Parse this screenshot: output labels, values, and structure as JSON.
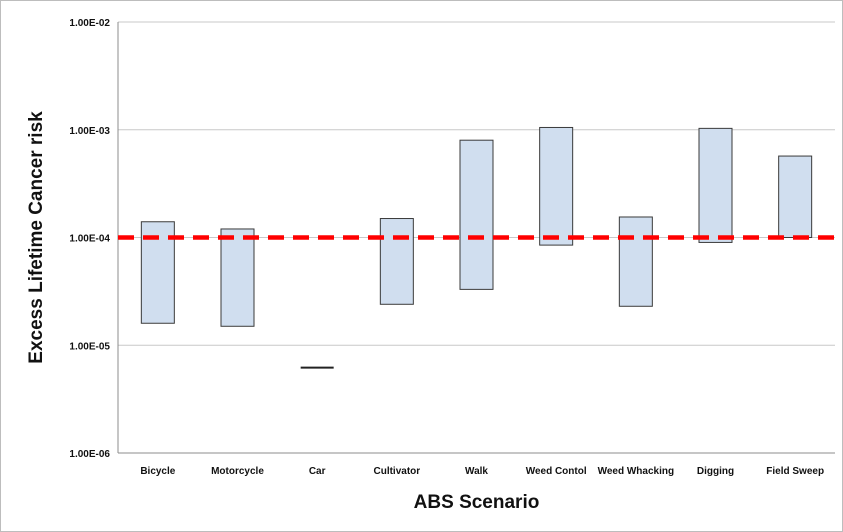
{
  "chart_data": {
    "type": "bar",
    "subtype": "floating-range",
    "title": "",
    "xlabel": "ABS Scenario",
    "ylabel": "Excess  Lifetime Cancer  risk",
    "yscale": "log",
    "ylim": [
      1e-06,
      0.01
    ],
    "yticks": [
      1e-06,
      1e-05,
      0.0001,
      0.001,
      0.01
    ],
    "ytick_labels": [
      "1.00E-06",
      "1.00E-05",
      "1.00E-04",
      "1.00E-03",
      "1.00E-02"
    ],
    "grid": true,
    "legend": false,
    "categories": [
      "Bicycle",
      "Motorcycle",
      "Car",
      "Cultivator",
      "Walk",
      "Weed Contol",
      "Weed Whacking",
      "Digging",
      "Field Sweep"
    ],
    "series": [
      {
        "low": [
          1.6e-05,
          1.5e-05,
          6.2e-06,
          2.4e-05,
          3.3e-05,
          8.5e-05,
          2.3e-05,
          9e-05,
          0.0001
        ],
        "high": [
          0.00014,
          0.00012,
          6.2e-06,
          0.00015,
          0.0008,
          0.00105,
          0.000155,
          0.00103,
          0.00057
        ]
      }
    ],
    "reference_line": {
      "value": 0.0001,
      "style": "dashed"
    },
    "colors": {
      "bar_fill": "#d0deef",
      "bar_stroke": "#3a3a3a",
      "reference": "#ff0000",
      "grid": "#c8c8c8"
    }
  }
}
